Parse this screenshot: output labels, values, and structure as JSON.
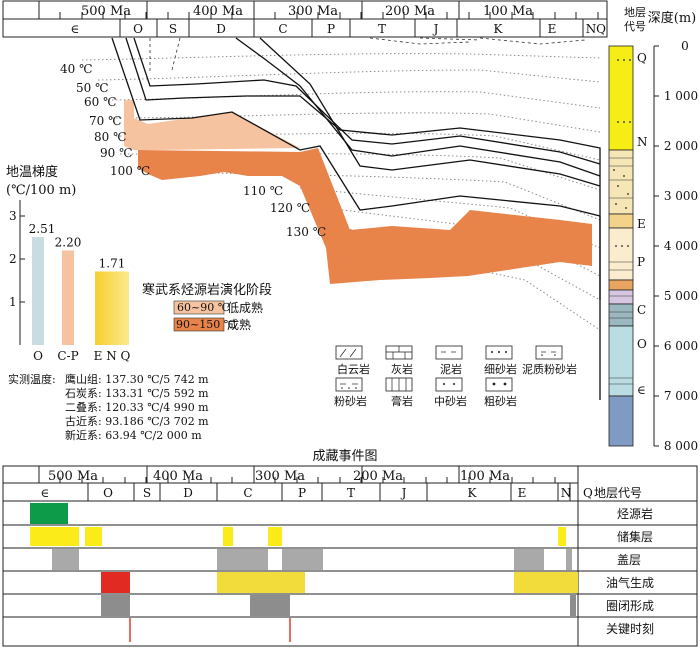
{
  "top_chart": {
    "time_labels": [
      "500 Ma",
      "400 Ma",
      "300 Ma",
      "200 Ma",
      "100 Ma"
    ],
    "periods": [
      "∈",
      "O",
      "S",
      "D",
      "C",
      "P",
      "T",
      "J",
      "K",
      "E",
      "N",
      "Q"
    ],
    "strata_code_header": "地层代号",
    "depth_header": "深度(m)",
    "depth_ticks": [
      "0",
      "1 000",
      "2 000",
      "3 000",
      "4 000",
      "5 000",
      "6 000",
      "7 000",
      "8 000"
    ],
    "column_letters": [
      "Q",
      "N",
      "E",
      "P",
      "C",
      "O",
      "∈"
    ],
    "isotherms": [
      "40 ℃",
      "50 ℃",
      "60 ℃",
      "70 ℃",
      "80 ℃",
      "90 ℃",
      "100 ℃",
      "110 ℃",
      "120 ℃",
      "130 ℃"
    ],
    "gradient": {
      "title_line1": "地温梯度",
      "title_line2": "(℃/100 m)",
      "y_ticks": [
        "3",
        "2",
        "1"
      ],
      "bars": [
        {
          "label": "O",
          "value": 2.51,
          "value_text": "2.51",
          "color": "#c9dcdf"
        },
        {
          "label": "C-P",
          "value": 2.2,
          "value_text": "2.20",
          "color": "#f6c3a1"
        },
        {
          "label": "E N Q",
          "value": 1.71,
          "value_text": "1.71",
          "color": "#f9d94a"
        }
      ]
    },
    "stage_legend": {
      "title": "寒武系烃源岩演化阶段",
      "items": [
        {
          "range": "60~90 ℃",
          "desc": "低成熟",
          "color": "#f6c3a1"
        },
        {
          "range": "90~150 ℃",
          "desc": "成熟",
          "color": "#e8834a"
        }
      ]
    },
    "lithology_legend": [
      "白云岩",
      "灰岩",
      "泥岩",
      "细砂岩",
      "泥质粉砂岩",
      "粉砂岩",
      "膏岩",
      "中砂岩",
      "粗砂岩"
    ],
    "measured": {
      "title": "实测温度:",
      "rows": [
        "鹰山组:  137.30 ℃/5 742 m",
        "石炭系:  133.31 ℃/5 592 m",
        "二叠系:  120.33 ℃/4 990 m",
        "古近系:  93.186 ℃/3 702 m",
        "新近系:  63.94 ℃/2 000 m"
      ]
    }
  },
  "events_chart": {
    "title": "成藏事件图",
    "time_labels": [
      "500 Ma",
      "400 Ma",
      "300 Ma",
      "200 Ma",
      "100 Ma"
    ],
    "periods": [
      "∈",
      "O",
      "S",
      "D",
      "C",
      "P",
      "T",
      "J",
      "K",
      "E",
      "N",
      "Q"
    ],
    "strata_code_header": "地层代号",
    "rows": [
      "烃源岩",
      "储集层",
      "盖层",
      "油气生成",
      "圈闭形成",
      "关键时刻"
    ]
  },
  "colors": {
    "source_rock": "#0d9a49",
    "reservoir": "#fbec19",
    "seal": "#a9a9a9",
    "generation_red": "#e12a22",
    "generation_yellow": "#f2dc3c",
    "trap": "#8d8d8d",
    "critical": "#e03a2a",
    "low_mature": "#f6c3a1",
    "mature": "#e8834a"
  }
}
